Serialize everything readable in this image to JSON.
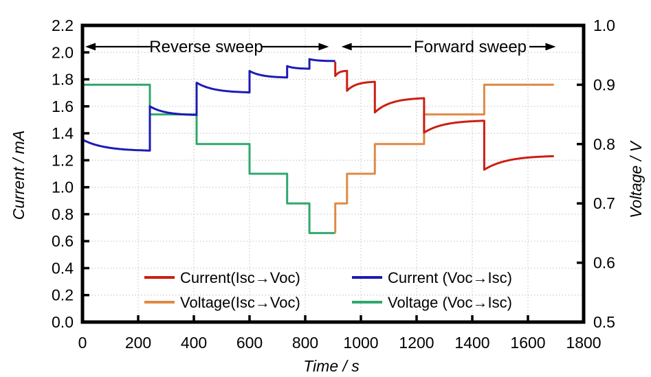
{
  "figure": {
    "background": "#ffffff",
    "frame_color": "#000000",
    "grid_color": "#c9c9c9",
    "text_color": "#000000"
  },
  "chart_data": {
    "type": "line",
    "title": "",
    "xlabel": "Time / s",
    "ylabel_left": "Current / mA",
    "ylabel_right": "Voltage / V",
    "x_range": [
      0,
      1800
    ],
    "x_ticks": [
      0,
      200,
      400,
      600,
      800,
      1000,
      1200,
      1400,
      1600,
      1800
    ],
    "y_left_range": [
      0.0,
      2.2
    ],
    "y_left_ticks": [
      "0.0",
      "0.2",
      "0.4",
      "0.6",
      "0.8",
      "1.0",
      "1.2",
      "1.4",
      "1.6",
      "1.8",
      "2.0",
      "2.2"
    ],
    "y_right_range": [
      0.5,
      1.0
    ],
    "y_right_ticks": [
      "0.5",
      "0.6",
      "0.7",
      "0.8",
      "0.9",
      "1.0"
    ],
    "grid": "dotted",
    "legend_position": "inside-bottom-center",
    "annotations": [
      {
        "text": "Reverse sweep",
        "x_start": 10,
        "x_end": 885,
        "style": "double-arrow"
      },
      {
        "text": "Forward sweep",
        "x_start": 930,
        "x_end": 1700,
        "style": "double-arrow"
      }
    ],
    "series": [
      {
        "key": "current-isc-voc",
        "name": "Current(Isc→Voc)",
        "color": "#cc1e12",
        "axis": "left",
        "shape": "exp-relax",
        "lead_in": [
          908,
          1.93
        ],
        "segments": [
          [
            908,
            950,
            1.825,
            1.865
          ],
          [
            950,
            1050,
            1.715,
            1.785
          ],
          [
            1050,
            1227,
            1.555,
            1.665
          ],
          [
            1227,
            1443,
            1.405,
            1.497
          ],
          [
            1443,
            1693,
            1.13,
            1.235
          ]
        ]
      },
      {
        "key": "current-voc-isc",
        "name": "Current (Voc→Isc)",
        "color": "#1c1ab5",
        "axis": "left",
        "shape": "exp-relax",
        "segments": [
          [
            0,
            242,
            1.353,
            1.268
          ],
          [
            242,
            410,
            1.6,
            1.533
          ],
          [
            410,
            600,
            1.775,
            1.7
          ],
          [
            600,
            735,
            1.862,
            1.812
          ],
          [
            735,
            815,
            1.898,
            1.878
          ],
          [
            815,
            908,
            1.95,
            1.935
          ]
        ]
      },
      {
        "key": "voltage-isc-voc",
        "name": "Voltage(Isc→Voc)",
        "color": "#df8a44",
        "axis": "right",
        "shape": "step",
        "lead_in": [
          908,
          0.65
        ],
        "steps": [
          [
            908,
            950,
            0.7
          ],
          [
            950,
            1050,
            0.75
          ],
          [
            1050,
            1227,
            0.8
          ],
          [
            1227,
            1443,
            0.85
          ],
          [
            1443,
            1693,
            0.9
          ]
        ]
      },
      {
        "key": "voltage-voc-isc",
        "name": "Voltage (Voc→Isc)",
        "color": "#2fa86d",
        "axis": "right",
        "shape": "step",
        "steps": [
          [
            0,
            242,
            0.9
          ],
          [
            242,
            410,
            0.85
          ],
          [
            410,
            600,
            0.8
          ],
          [
            600,
            735,
            0.75
          ],
          [
            735,
            815,
            0.7
          ],
          [
            815,
            908,
            0.65
          ]
        ]
      }
    ]
  }
}
